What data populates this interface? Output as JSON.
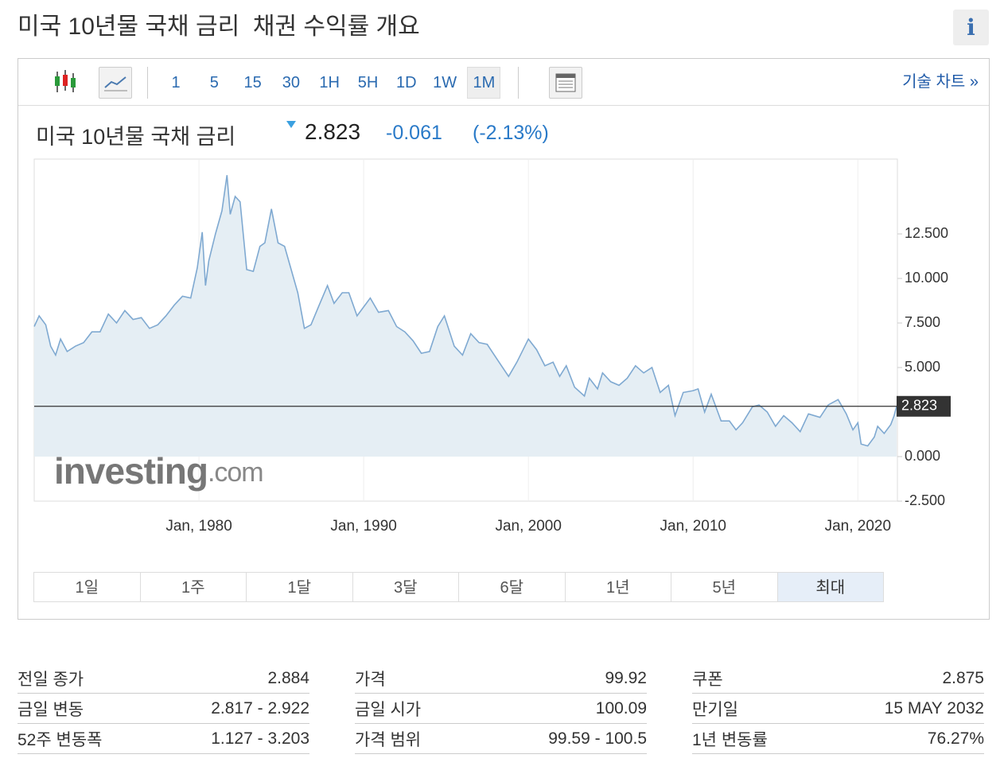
{
  "header": {
    "title": "미국 10년물 국채 금리  채권 수익률 개요",
    "info": "i"
  },
  "toolbar": {
    "intervals": [
      "1",
      "5",
      "15",
      "30",
      "1H",
      "5H",
      "1D",
      "1W",
      "1M"
    ],
    "active_interval": "1M",
    "technical_chart": "기술 차트 »"
  },
  "quote": {
    "name": "미국 10년물 국채 금리",
    "price": "2.823",
    "change": "-0.061",
    "change_pct": "(-2.13%)"
  },
  "chart_data": {
    "type": "line",
    "color": "#7fa9d1",
    "area_color": "#e5eef4",
    "x": [
      1970.0,
      1970.3,
      1970.7,
      1971.0,
      1971.3,
      1971.6,
      1972.0,
      1972.5,
      1973.0,
      1973.5,
      1974.0,
      1974.5,
      1975.0,
      1975.5,
      1976.0,
      1976.5,
      1977.0,
      1977.5,
      1978.0,
      1978.5,
      1979.0,
      1979.5,
      1979.9,
      1980.2,
      1980.4,
      1980.6,
      1981.0,
      1981.4,
      1981.7,
      1981.9,
      1982.2,
      1982.5,
      1982.9,
      1983.3,
      1983.7,
      1984.0,
      1984.4,
      1984.8,
      1985.2,
      1985.6,
      1986.0,
      1986.4,
      1986.8,
      1987.3,
      1987.8,
      1988.2,
      1988.7,
      1989.1,
      1989.6,
      1990.0,
      1990.4,
      1990.9,
      1991.5,
      1992.0,
      1992.5,
      1993.0,
      1993.5,
      1994.0,
      1994.5,
      1994.9,
      1995.5,
      1996.0,
      1996.5,
      1997.0,
      1997.5,
      1998.0,
      1998.8,
      1999.3,
      2000.0,
      2000.5,
      2001.0,
      2001.5,
      2001.9,
      2002.3,
      2002.8,
      2003.4,
      2003.7,
      2004.2,
      2004.5,
      2005.0,
      2005.5,
      2006.0,
      2006.5,
      2007.0,
      2007.5,
      2008.0,
      2008.5,
      2008.9,
      2009.4,
      2010.0,
      2010.3,
      2010.7,
      2011.1,
      2011.7,
      2012.2,
      2012.6,
      2013.0,
      2013.6,
      2014.0,
      2014.5,
      2015.0,
      2015.5,
      2016.0,
      2016.5,
      2017.0,
      2017.7,
      2018.2,
      2018.8,
      2019.3,
      2019.7,
      2020.0,
      2020.2,
      2020.6,
      2021.0,
      2021.2,
      2021.6,
      2022.0,
      2022.2,
      2022.35
    ],
    "values": [
      7.3,
      7.9,
      7.4,
      6.2,
      5.7,
      6.6,
      5.9,
      6.2,
      6.4,
      7.0,
      7.0,
      8.0,
      7.5,
      8.2,
      7.7,
      7.8,
      7.2,
      7.4,
      7.9,
      8.5,
      9.0,
      8.9,
      10.6,
      12.6,
      9.6,
      11.0,
      12.5,
      13.8,
      15.8,
      13.6,
      14.6,
      14.3,
      10.5,
      10.4,
      11.8,
      12.0,
      13.9,
      12.0,
      11.8,
      10.5,
      9.2,
      7.2,
      7.4,
      8.5,
      9.6,
      8.6,
      9.2,
      9.2,
      7.9,
      8.4,
      8.9,
      8.1,
      8.2,
      7.3,
      7.0,
      6.5,
      5.8,
      5.9,
      7.3,
      7.9,
      6.2,
      5.7,
      6.9,
      6.4,
      6.3,
      5.6,
      4.5,
      5.3,
      6.6,
      6.0,
      5.1,
      5.3,
      4.5,
      5.1,
      3.9,
      3.4,
      4.4,
      3.8,
      4.7,
      4.2,
      4.0,
      4.4,
      5.1,
      4.7,
      5.0,
      3.6,
      4.0,
      2.3,
      3.6,
      3.7,
      3.8,
      2.5,
      3.5,
      2.0,
      2.0,
      1.5,
      1.9,
      2.8,
      2.9,
      2.5,
      1.7,
      2.3,
      1.9,
      1.4,
      2.4,
      2.2,
      2.9,
      3.2,
      2.4,
      1.5,
      1.9,
      0.7,
      0.6,
      1.1,
      1.7,
      1.3,
      1.8,
      2.3,
      2.823
    ],
    "current_value": 2.823,
    "xlim": [
      1970,
      2022.4
    ],
    "ylim": [
      -2.5,
      16.7
    ],
    "xticks": [
      {
        "value": 1980,
        "label": "Jan, 1980"
      },
      {
        "value": 1990,
        "label": "Jan, 1990"
      },
      {
        "value": 2000,
        "label": "Jan, 2000"
      },
      {
        "value": 2010,
        "label": "Jan, 2010"
      },
      {
        "value": 2020,
        "label": "Jan, 2020"
      }
    ],
    "yticks": [
      {
        "value": -2.5,
        "label": "-2.500"
      },
      {
        "value": 0,
        "label": "0.000"
      },
      {
        "value": 5,
        "label": "5.000"
      },
      {
        "value": 7.5,
        "label": "7.500"
      },
      {
        "value": 10,
        "label": "10.000"
      },
      {
        "value": 12.5,
        "label": "12.500"
      }
    ],
    "grid": true,
    "watermark": {
      "brand": "investing",
      "suffix": ".com"
    }
  },
  "ranges": {
    "items": [
      "1일",
      "1주",
      "1달",
      "3달",
      "6달",
      "1년",
      "5년",
      "최대"
    ],
    "active": "최대"
  },
  "stats": [
    [
      {
        "label": "전일 종가",
        "value": "2.884"
      },
      {
        "label": "금일 변동",
        "value": "2.817 - 2.922"
      },
      {
        "label": "52주 변동폭",
        "value": "1.127 - 3.203"
      }
    ],
    [
      {
        "label": "가격",
        "value": "99.92"
      },
      {
        "label": "금일 시가",
        "value": "100.09"
      },
      {
        "label": "가격 범위",
        "value": "99.59 - 100.5"
      }
    ],
    [
      {
        "label": "쿠폰",
        "value": "2.875"
      },
      {
        "label": "만기일",
        "value": "15 MAY 2032"
      },
      {
        "label": "1년 변동률",
        "value": "76.27%"
      }
    ]
  ]
}
